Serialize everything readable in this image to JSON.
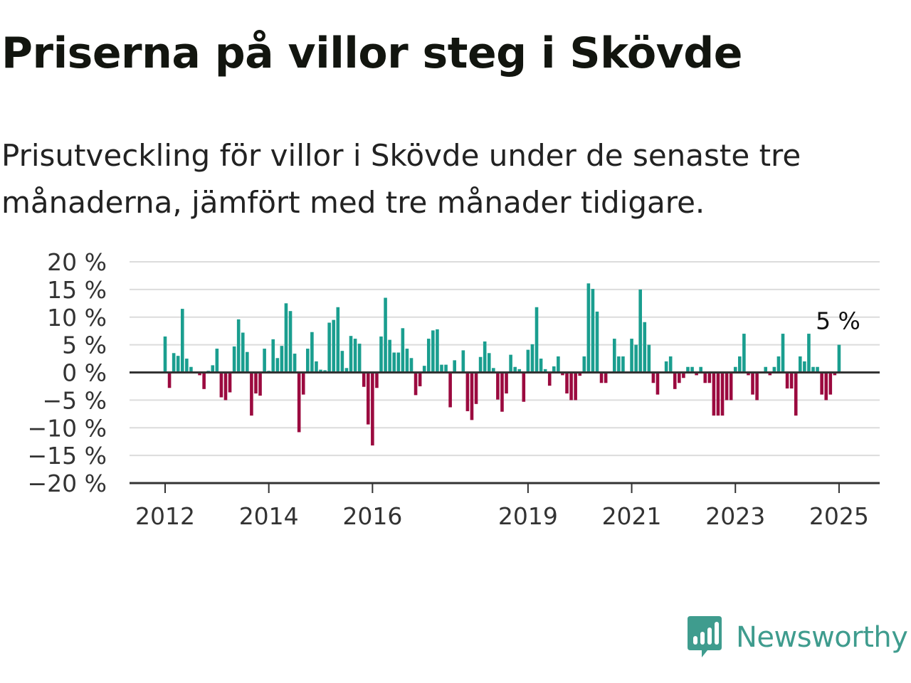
{
  "header": {
    "title": "Priserna på villor steg i Skövde",
    "subtitle": "Prisutveckling för villor i Skövde under de senaste tre månaderna, jämfört med tre månader tidigare."
  },
  "logo": {
    "text": "Newsworthy",
    "icon": "newsworthy-chart-bubble-icon"
  },
  "colors": {
    "positive": "#1a9e8f",
    "negative": "#9b0a3f",
    "zero_line": "#333333",
    "grid": "#dcdcdc"
  },
  "chart_data": {
    "type": "bar",
    "x_start": "2012-01",
    "y_unit": " %",
    "ylim": [
      -20,
      20
    ],
    "yticks": [
      20,
      15,
      10,
      5,
      0,
      -5,
      -10,
      -15,
      -20
    ],
    "ytick_labels": [
      "20 %",
      "15 %",
      "10 %",
      "5 %",
      "0 %",
      "−5 %",
      "−10 %",
      "−15 %",
      "−20 %"
    ],
    "xticks": [
      "2012",
      "2014",
      "2016",
      "2019",
      "2021",
      "2023",
      "2025"
    ],
    "grid": true,
    "last_value_label": "5 %",
    "values": [
      6.5,
      -2.8,
      3.5,
      3,
      11.5,
      2.5,
      1,
      0,
      -0.5,
      -3,
      0.3,
      1.3,
      4.3,
      -4.5,
      -5,
      -3.6,
      4.7,
      9.6,
      7.2,
      3.7,
      -7.8,
      -3.8,
      -4.2,
      4.3,
      0.3,
      6,
      2.6,
      4.8,
      12.5,
      11.1,
      3.4,
      -10.8,
      -4,
      4.3,
      7.3,
      2,
      0.5,
      0.4,
      9,
      9.5,
      11.8,
      3.9,
      0.8,
      6.6,
      6.1,
      5.2,
      -2.6,
      -9.4,
      -13.2,
      -2.8,
      6.5,
      13.5,
      5.9,
      3.6,
      3.6,
      8,
      4.3,
      2.6,
      -4.1,
      -2.5,
      1.2,
      6.1,
      7.6,
      7.8,
      1.4,
      1.4,
      -6.3,
      2.2,
      0,
      4,
      -7,
      -8.6,
      -5.7,
      2.8,
      5.6,
      3.5,
      0.8,
      -4.9,
      -7.1,
      -3.8,
      3.2,
      1,
      0.6,
      -5.3,
      4.1,
      5.1,
      11.8,
      2.5,
      0.6,
      -2.4,
      1.1,
      2.9,
      -0.5,
      -3.8,
      -5,
      -5,
      -0.6,
      2.9,
      16.1,
      15.1,
      11,
      -1.9,
      -1.9,
      0,
      6.1,
      2.9,
      2.9,
      0,
      6.1,
      5,
      15,
      9.1,
      5,
      -1.9,
      -4,
      0,
      2,
      2.9,
      -3,
      -1.9,
      -1,
      1,
      1,
      -0.5,
      1,
      -1.9,
      -1.9,
      -7.8,
      -7.8,
      -7.8,
      -5,
      -5,
      1,
      2.9,
      7,
      -0.5,
      -4,
      -5,
      0,
      1,
      -0.5,
      1,
      2.9,
      7,
      -2.9,
      -2.9,
      -7.8,
      2.9,
      2,
      7,
      1,
      1,
      -4,
      -5,
      -4,
      -0.5,
      5
    ]
  }
}
